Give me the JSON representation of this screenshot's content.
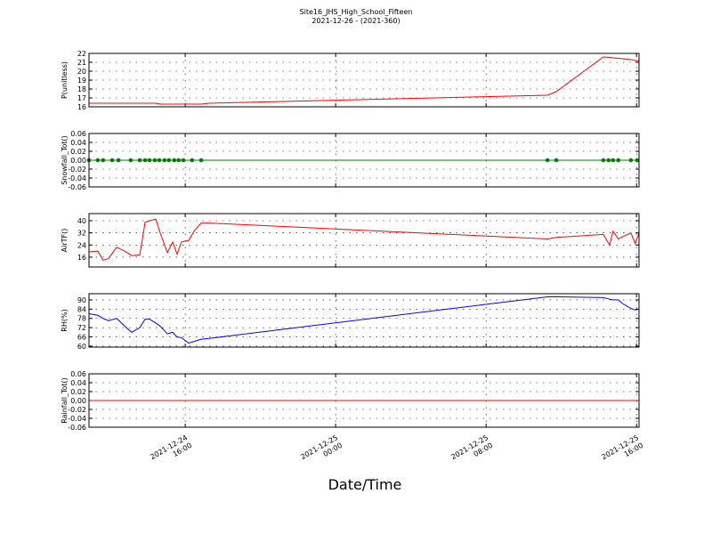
{
  "title": "Site16_JHS_High_School_Fifteen",
  "subtitle": "2021-12-26 - (2021-360)",
  "xlabel": "Date/Time",
  "chart_data": [
    {
      "type": "line",
      "ylabel": "P(unitless)",
      "color": "#ff0000",
      "grid": true,
      "x": [
        "2021-12-24 10:53",
        "2021-12-24 11:21",
        "2021-12-24 11:38",
        "2021-12-24 11:55",
        "2021-12-24 12:21",
        "2021-12-24 12:47",
        "2021-12-24 13:09",
        "2021-12-24 13:35",
        "2021-12-24 13:52",
        "2021-12-24 14:06",
        "2021-12-24 14:26",
        "2021-12-24 14:40",
        "2021-12-24 15:03",
        "2021-12-24 15:20",
        "2021-12-24 15:34",
        "2021-12-24 15:48",
        "2021-12-24 16:11",
        "2021-12-24 16:28",
        "2021-12-24 16:51",
        "2021-12-24 17:16",
        "2021-12-25 11:16",
        "2021-12-25 11:44",
        "2021-12-25 14:14",
        "2021-12-25 14:34",
        "2021-12-25 14:45",
        "2021-12-25 15:02",
        "2021-12-25 15:16",
        "2021-12-25 15:42",
        "2021-12-25 15:56",
        "2021-12-25 16:08"
      ],
      "values": [
        16.4,
        16.4,
        16.4,
        16.4,
        16.4,
        16.4,
        16.4,
        16.4,
        16.4,
        16.4,
        16.4,
        16.3,
        16.3,
        16.3,
        16.3,
        16.3,
        16.3,
        16.3,
        16.3,
        16.4,
        17.3,
        17.7,
        21.6,
        21.55,
        21.5,
        21.45,
        21.4,
        21.3,
        21.2,
        21.15
      ],
      "xlim": [
        "2021-12-24 10:53",
        "2021-12-25 16:08"
      ],
      "xticks": [
        "2021-12-24 16:00",
        "2021-12-25 00:00",
        "2021-12-25 08:00",
        "2021-12-25 16:00"
      ],
      "ylim": [
        16,
        22
      ],
      "yticks": [
        16,
        17,
        18,
        19,
        20,
        21,
        22
      ]
    },
    {
      "type": "line",
      "ylabel": "Snowfall_Tot()",
      "color": "#008000",
      "marker": "o",
      "grid": true,
      "x": [
        "2021-12-24 10:53",
        "2021-12-24 11:21",
        "2021-12-24 11:38",
        "2021-12-24 12:07",
        "2021-12-24 12:27",
        "2021-12-24 13:06",
        "2021-12-24 13:35",
        "2021-12-24 13:52",
        "2021-12-24 14:06",
        "2021-12-24 14:23",
        "2021-12-24 14:37",
        "2021-12-24 14:54",
        "2021-12-24 15:08",
        "2021-12-24 15:25",
        "2021-12-24 15:39",
        "2021-12-24 15:54",
        "2021-12-24 16:22",
        "2021-12-24 16:51",
        "2021-12-25 11:16",
        "2021-12-25 11:44",
        "2021-12-25 14:14",
        "2021-12-25 14:31",
        "2021-12-25 14:45",
        "2021-12-25 15:02",
        "2021-12-25 15:42",
        "2021-12-25 16:02"
      ],
      "values": [
        0,
        0,
        0,
        0,
        0,
        0,
        0,
        0,
        0,
        0,
        0,
        0,
        0,
        0,
        0,
        0,
        0,
        0,
        0,
        0,
        0,
        0,
        0,
        0,
        0,
        0
      ],
      "xlim": [
        "2021-12-24 10:53",
        "2021-12-25 16:08"
      ],
      "xticks": [
        "2021-12-24 16:00",
        "2021-12-25 00:00",
        "2021-12-25 08:00",
        "2021-12-25 16:00"
      ],
      "ylim": [
        -0.06,
        0.06
      ],
      "yticks": [
        -0.06,
        -0.04,
        -0.02,
        {
          "value": 0,
          "label": "0.00"
        },
        0.02,
        0.04,
        0.06
      ]
    },
    {
      "type": "line",
      "ylabel": "AirTF()",
      "color": "#ff0000",
      "grid": true,
      "x": [
        "2021-12-24 10:53",
        "2021-12-24 11:21",
        "2021-12-24 11:38",
        "2021-12-24 11:55",
        "2021-12-24 12:21",
        "2021-12-24 12:47",
        "2021-12-24 13:09",
        "2021-12-24 13:35",
        "2021-12-24 13:52",
        "2021-12-24 14:06",
        "2021-12-24 14:26",
        "2021-12-24 14:40",
        "2021-12-24 15:03",
        "2021-12-24 15:20",
        "2021-12-24 15:34",
        "2021-12-24 15:48",
        "2021-12-24 16:11",
        "2021-12-24 16:28",
        "2021-12-24 16:51",
        "2021-12-24 17:16",
        "2021-12-25 11:16",
        "2021-12-25 11:44",
        "2021-12-25 14:14",
        "2021-12-25 14:34",
        "2021-12-25 14:45",
        "2021-12-25 15:02",
        "2021-12-25 15:16",
        "2021-12-25 15:42",
        "2021-12-25 15:56",
        "2021-12-25 16:08"
      ],
      "values": [
        19.5,
        20,
        14,
        15,
        22.5,
        20,
        17,
        17.5,
        39,
        40,
        41,
        32,
        19,
        26,
        18,
        26,
        27,
        33,
        38.5,
        38.5,
        28,
        29,
        31,
        24,
        33,
        28,
        29.5,
        32,
        25,
        32
      ],
      "xlim": [
        "2021-12-24 10:53",
        "2021-12-25 16:08"
      ],
      "xticks": [
        "2021-12-24 16:00",
        "2021-12-25 00:00",
        "2021-12-25 08:00",
        "2021-12-25 16:00"
      ],
      "ylim": [
        9.5,
        44.7
      ],
      "yticks": [
        16,
        24,
        32,
        40
      ]
    },
    {
      "type": "line",
      "ylabel": "RH(%)",
      "color": "#0000ff",
      "grid": true,
      "x": [
        "2021-12-24 10:53",
        "2021-12-24 11:21",
        "2021-12-24 11:38",
        "2021-12-24 11:55",
        "2021-12-24 12:21",
        "2021-12-24 12:47",
        "2021-12-24 13:09",
        "2021-12-24 13:35",
        "2021-12-24 13:52",
        "2021-12-24 14:06",
        "2021-12-24 14:26",
        "2021-12-24 14:40",
        "2021-12-24 15:03",
        "2021-12-24 15:20",
        "2021-12-24 15:34",
        "2021-12-24 15:48",
        "2021-12-24 16:11",
        "2021-12-24 16:28",
        "2021-12-24 16:51",
        "2021-12-24 17:16",
        "2021-12-25 11:16",
        "2021-12-25 11:44",
        "2021-12-25 14:14",
        "2021-12-25 14:34",
        "2021-12-25 14:45",
        "2021-12-25 15:02",
        "2021-12-25 15:16",
        "2021-12-25 15:42",
        "2021-12-25 15:56",
        "2021-12-25 16:08"
      ],
      "values": [
        81,
        80,
        78,
        76.5,
        78,
        73,
        69,
        72,
        77.5,
        77.5,
        75,
        73,
        68,
        69,
        66,
        65.5,
        62,
        63,
        64.5,
        65,
        92,
        92,
        91.5,
        90.5,
        90,
        90,
        87.5,
        84.5,
        83.5,
        84
      ],
      "xlim": [
        "2021-12-24 10:53",
        "2021-12-25 16:08"
      ],
      "xticks": [
        "2021-12-24 16:00",
        "2021-12-25 00:00",
        "2021-12-25 08:00",
        "2021-12-25 16:00"
      ],
      "ylim": [
        59.4,
        94
      ],
      "yticks": [
        60,
        66,
        72,
        78,
        84,
        90
      ]
    },
    {
      "type": "line",
      "ylabel": "Rainfall_Tot()",
      "color": "#ff0000",
      "grid": true,
      "x": [
        "2021-12-24 10:53",
        "2021-12-25 16:08"
      ],
      "values": [
        0,
        0
      ],
      "xlim": [
        "2021-12-24 10:53",
        "2021-12-25 16:08"
      ],
      "xticks": [
        {
          "value": "2021-12-24 16:00",
          "label": [
            "2021-12-24",
            "16:00"
          ]
        },
        {
          "value": "2021-12-25 00:00",
          "label": [
            "2021-12-25",
            "00:00"
          ]
        },
        {
          "value": "2021-12-25 08:00",
          "label": [
            "2021-12-25",
            "08:00"
          ]
        },
        {
          "value": "2021-12-25 16:00",
          "label": [
            "2021-12-25",
            "16:00"
          ]
        }
      ],
      "ylim": [
        -0.06,
        0.06
      ],
      "yticks": [
        -0.06,
        -0.04,
        -0.02,
        {
          "value": 0,
          "label": "0.00"
        },
        0.02,
        0.04,
        0.06
      ]
    }
  ]
}
